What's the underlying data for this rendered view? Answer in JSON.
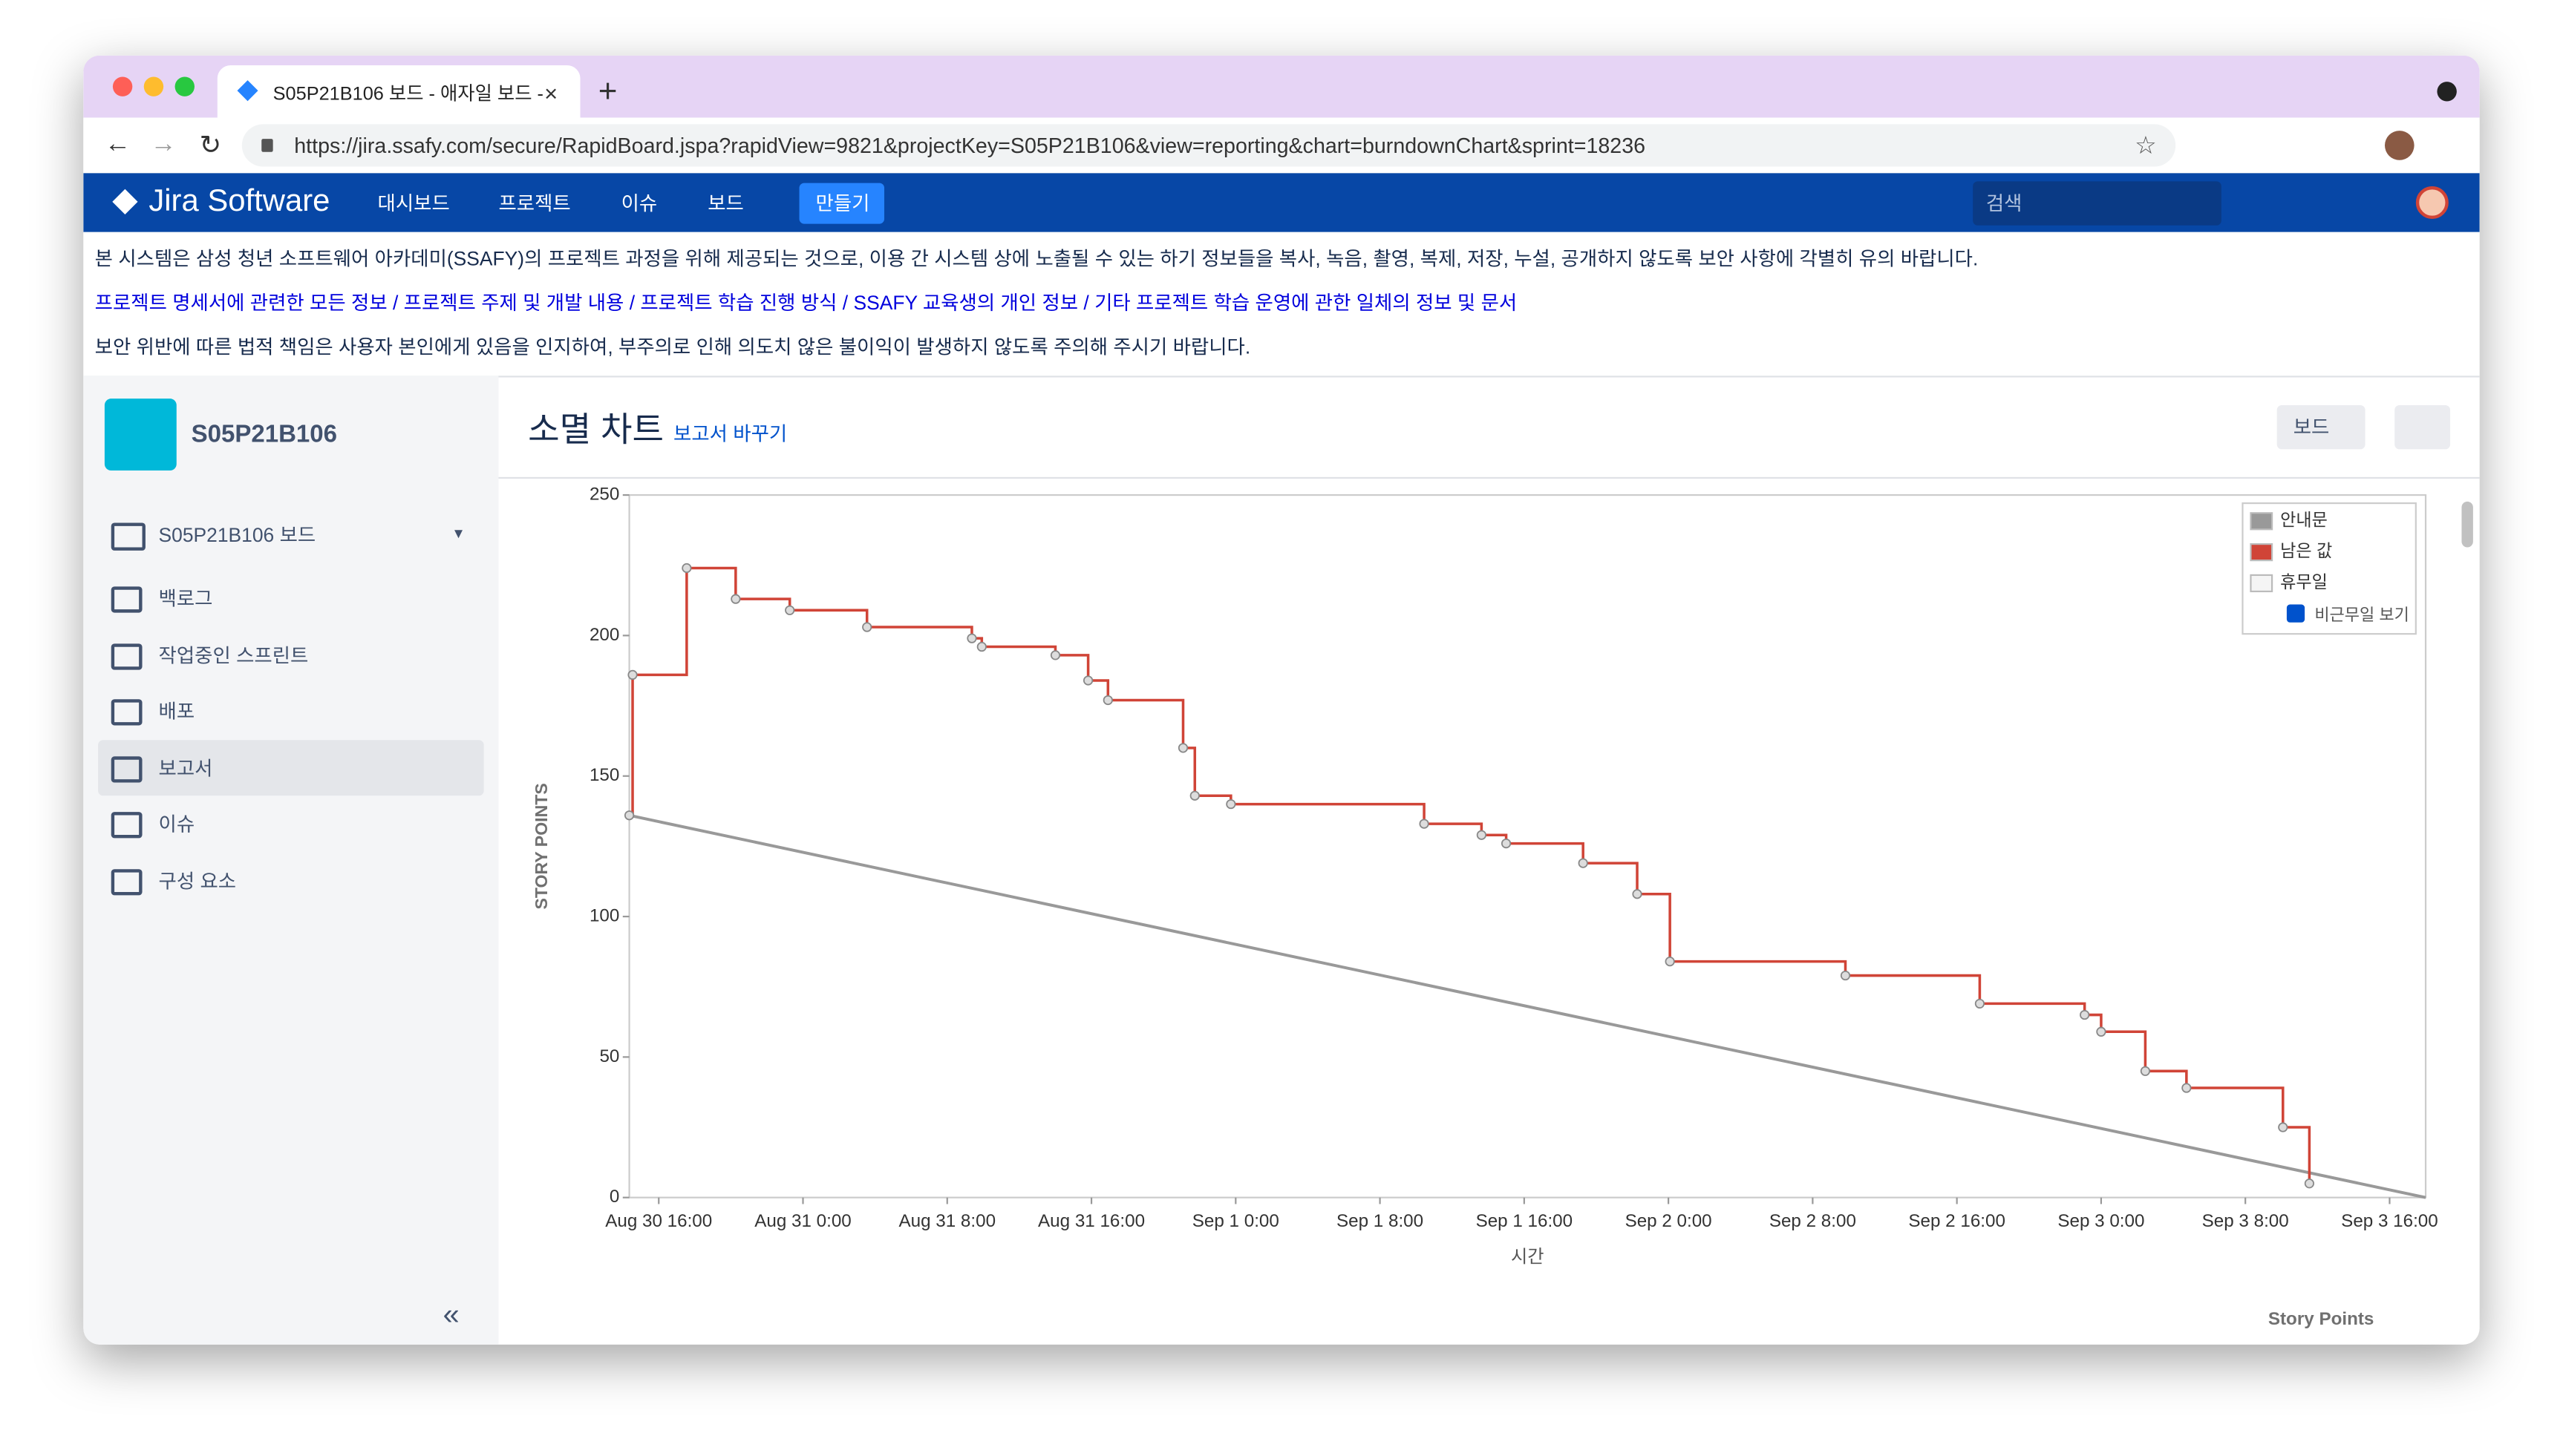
{
  "browser": {
    "tab_title": "S05P21B106 보드 - 애자일 보드 -",
    "url": "https://jira.ssafy.com/secure/RapidBoard.jspa?rapidView=9821&projectKey=S05P21B106&view=reporting&chart=burndownChart&sprint=18236"
  },
  "nav": {
    "logo": "Jira Software",
    "items": [
      "대시보드",
      "프로젝트",
      "이슈",
      "보드"
    ],
    "create": "만들기",
    "search_placeholder": "검색"
  },
  "notice": {
    "line1": "본 시스템은 삼성 청년 소프트웨어 아카데미(SSAFY)의 프로젝트 과정을 위해 제공되는 것으로, 이용 간 시스템 상에 노출될 수 있는 하기 정보들을 복사, 녹음, 촬영, 복제, 저장, 누설, 공개하지 않도록 보안 사항에 각별히 유의 바랍니다.",
    "line2": "프로젝트 명세서에 관련한 모든 정보 / 프로젝트 주제 및 개발 내용 / 프로젝트 학습 진행 방식 / SSAFY 교육생의 개인 정보 / 기타 프로젝트 학습 운영에 관한 일체의 정보 및 문서",
    "line3": "보안 위반에 따른 법적 책임은 사용자 본인에게 있음을 인지하여, 부주의로 인해 의도치 않은 불이익이 발생하지 않도록 주의해 주시기 바랍니다."
  },
  "sidebar": {
    "project": "S05P21B106",
    "board": "S05P21B106 보드",
    "items": [
      "백로그",
      "작업중인 스프린트",
      "배포",
      "보고서",
      "이슈",
      "구성 요소"
    ],
    "active": "보고서"
  },
  "header": {
    "title": "소멸 차트",
    "switch_report": "보고서 바꾸기",
    "board_button": "보드"
  },
  "chart_data": {
    "type": "line",
    "x_label": "시간",
    "y_label": "STORY POINTS",
    "footer": "Story Points",
    "xlim": [
      "Aug 30 14:22",
      "Sep 3 18:00"
    ],
    "xticks": [
      "Aug 30 16:00",
      "Aug 31 0:00",
      "Aug 31 8:00",
      "Aug 31 16:00",
      "Sep 1 0:00",
      "Sep 1 8:00",
      "Sep 1 16:00",
      "Sep 2 0:00",
      "Sep 2 8:00",
      "Sep 2 16:00",
      "Sep 3 0:00",
      "Sep 3 8:00",
      "Sep 3 16:00"
    ],
    "ylim": [
      0,
      250
    ],
    "yticks": [
      0,
      50,
      100,
      150,
      200,
      250
    ],
    "series": [
      {
        "name": "안내문",
        "color": "#999999",
        "x": [
          "Aug 30 14:22",
          "Sep 3 18:00"
        ],
        "values": [
          136,
          0
        ]
      },
      {
        "name": "남은 값",
        "color": "#d04437",
        "step": true,
        "x": [
          "Aug 30 14:22",
          "Aug 30 14:33",
          "Aug 30 17:33",
          "Aug 30 20:16",
          "Aug 30 23:16",
          "Aug 31 3:33",
          "Aug 31 9:22",
          "Aug 31 9:55",
          "Aug 31 14:00",
          "Aug 31 15:49",
          "Aug 31 16:55",
          "Aug 31 21:05",
          "Aug 31 21:44",
          "Aug 31 23:44",
          "Sep 1 10:27",
          "Sep 1 13:38",
          "Sep 1 15:00",
          "Sep 1 19:16",
          "Sep 1 22:16",
          "Sep 2 0:05",
          "Sep 2 9:49",
          "Sep 2 17:16",
          "Sep 2 23:05",
          "Sep 3 0:00",
          "Sep 3 2:27",
          "Sep 3 4:44",
          "Sep 3 10:05",
          "Sep 3 11:33"
        ],
        "values": [
          136,
          186,
          224,
          213,
          209,
          203,
          199,
          196,
          193,
          184,
          177,
          160,
          143,
          140,
          133,
          129,
          126,
          119,
          108,
          84,
          79,
          69,
          65,
          59,
          45,
          39,
          25,
          5
        ]
      }
    ],
    "non_working": {
      "name": "휴무일",
      "color": "#f5f5f5"
    },
    "show_non_working": "비근무일 보기"
  }
}
